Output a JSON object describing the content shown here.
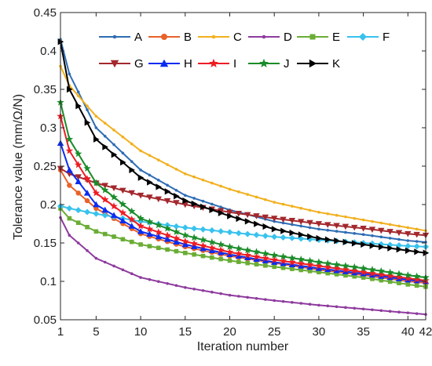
{
  "chart_data": {
    "type": "line",
    "title": "",
    "xlabel": "Iteration number",
    "ylabel": "Tolerance value (mm/Ω/N)",
    "xlim": [
      1,
      42
    ],
    "ylim": [
      0.05,
      0.45
    ],
    "xticks": [
      1,
      5,
      10,
      15,
      20,
      25,
      30,
      35,
      40,
      42
    ],
    "xtick_labels": [
      "1",
      "5",
      "10",
      "15",
      "20",
      "25",
      "30",
      "35",
      "40",
      "42"
    ],
    "yticks": [
      0.05,
      0.1,
      0.15,
      0.2,
      0.25,
      0.3,
      0.35,
      0.4,
      0.45
    ],
    "ytick_labels": [
      "0.05",
      "0.1",
      "0.15",
      "0.2",
      "0.25",
      "0.3",
      "0.35",
      "0.4",
      "0.45"
    ],
    "grid": false,
    "legend_position": "top",
    "x": [
      1,
      2,
      3,
      4,
      5,
      6,
      7,
      8,
      9,
      10,
      11,
      12,
      13,
      14,
      15,
      16,
      17,
      18,
      19,
      20,
      21,
      22,
      23,
      24,
      25,
      26,
      27,
      28,
      29,
      30,
      31,
      32,
      33,
      34,
      35,
      36,
      37,
      38,
      39,
      40,
      41,
      42
    ],
    "series": [
      {
        "name": "A",
        "color": "#2E6DB4",
        "marker": "dot",
        "anchors": [
          [
            1,
            0.415
          ],
          [
            2,
            0.37
          ],
          [
            5,
            0.3
          ],
          [
            10,
            0.245
          ],
          [
            15,
            0.212
          ],
          [
            20,
            0.193
          ],
          [
            25,
            0.178
          ],
          [
            30,
            0.168
          ],
          [
            35,
            0.161
          ],
          [
            40,
            0.153
          ],
          [
            42,
            0.151
          ]
        ]
      },
      {
        "name": "B",
        "color": "#E8622A",
        "marker": "circle",
        "anchors": [
          [
            1,
            0.245
          ],
          [
            2,
            0.225
          ],
          [
            5,
            0.195
          ],
          [
            10,
            0.162
          ],
          [
            15,
            0.145
          ],
          [
            20,
            0.133
          ],
          [
            25,
            0.124
          ],
          [
            30,
            0.115
          ],
          [
            35,
            0.108
          ],
          [
            40,
            0.1
          ],
          [
            42,
            0.098
          ]
        ]
      },
      {
        "name": "C",
        "color": "#F2B01E",
        "marker": "dot",
        "anchors": [
          [
            1,
            0.38
          ],
          [
            2,
            0.355
          ],
          [
            5,
            0.315
          ],
          [
            10,
            0.27
          ],
          [
            15,
            0.24
          ],
          [
            20,
            0.22
          ],
          [
            25,
            0.203
          ],
          [
            30,
            0.19
          ],
          [
            35,
            0.18
          ],
          [
            40,
            0.17
          ],
          [
            42,
            0.166
          ]
        ]
      },
      {
        "name": "D",
        "color": "#8E3B9E",
        "marker": "dot",
        "anchors": [
          [
            1,
            0.183
          ],
          [
            2,
            0.16
          ],
          [
            5,
            0.13
          ],
          [
            10,
            0.105
          ],
          [
            15,
            0.092
          ],
          [
            20,
            0.082
          ],
          [
            25,
            0.075
          ],
          [
            30,
            0.069
          ],
          [
            35,
            0.064
          ],
          [
            40,
            0.059
          ],
          [
            42,
            0.057
          ]
        ]
      },
      {
        "name": "E",
        "color": "#6AAD35",
        "marker": "square",
        "anchors": [
          [
            1,
            0.195
          ],
          [
            2,
            0.182
          ],
          [
            5,
            0.165
          ],
          [
            10,
            0.148
          ],
          [
            15,
            0.137
          ],
          [
            20,
            0.127
          ],
          [
            25,
            0.119
          ],
          [
            30,
            0.112
          ],
          [
            35,
            0.105
          ],
          [
            40,
            0.096
          ],
          [
            42,
            0.093
          ]
        ]
      },
      {
        "name": "F",
        "color": "#38C2EE",
        "marker": "diamond",
        "anchors": [
          [
            1,
            0.198
          ],
          [
            2,
            0.195
          ],
          [
            5,
            0.188
          ],
          [
            10,
            0.178
          ],
          [
            15,
            0.17
          ],
          [
            20,
            0.164
          ],
          [
            25,
            0.158
          ],
          [
            30,
            0.154
          ],
          [
            35,
            0.15
          ],
          [
            40,
            0.146
          ],
          [
            42,
            0.145
          ]
        ]
      },
      {
        "name": "G",
        "color": "#A3282D",
        "marker": "triangle-down",
        "anchors": [
          [
            1,
            0.247
          ],
          [
            2,
            0.24
          ],
          [
            5,
            0.228
          ],
          [
            10,
            0.212
          ],
          [
            15,
            0.2
          ],
          [
            20,
            0.19
          ],
          [
            25,
            0.182
          ],
          [
            30,
            0.175
          ],
          [
            35,
            0.169
          ],
          [
            40,
            0.162
          ],
          [
            42,
            0.16
          ]
        ]
      },
      {
        "name": "H",
        "color": "#0A2CF0",
        "marker": "triangle-up",
        "anchors": [
          [
            1,
            0.28
          ],
          [
            2,
            0.245
          ],
          [
            5,
            0.2
          ],
          [
            10,
            0.165
          ],
          [
            15,
            0.148
          ],
          [
            20,
            0.135
          ],
          [
            25,
            0.125
          ],
          [
            30,
            0.117
          ],
          [
            35,
            0.11
          ],
          [
            40,
            0.102
          ],
          [
            42,
            0.1
          ]
        ]
      },
      {
        "name": "I",
        "color": "#EE1C24",
        "marker": "star",
        "anchors": [
          [
            1,
            0.315
          ],
          [
            2,
            0.27
          ],
          [
            5,
            0.215
          ],
          [
            10,
            0.172
          ],
          [
            15,
            0.152
          ],
          [
            20,
            0.138
          ],
          [
            25,
            0.128
          ],
          [
            30,
            0.12
          ],
          [
            35,
            0.112
          ],
          [
            40,
            0.104
          ],
          [
            42,
            0.101
          ]
        ]
      },
      {
        "name": "J",
        "color": "#1A8C2A",
        "marker": "star",
        "anchors": [
          [
            1,
            0.333
          ],
          [
            2,
            0.285
          ],
          [
            5,
            0.228
          ],
          [
            10,
            0.182
          ],
          [
            15,
            0.16
          ],
          [
            20,
            0.145
          ],
          [
            25,
            0.134
          ],
          [
            30,
            0.125
          ],
          [
            35,
            0.117
          ],
          [
            40,
            0.108
          ],
          [
            42,
            0.105
          ]
        ]
      },
      {
        "name": "K",
        "color": "#000000",
        "marker": "triangle-right",
        "anchors": [
          [
            1,
            0.412
          ],
          [
            2,
            0.35
          ],
          [
            5,
            0.285
          ],
          [
            10,
            0.235
          ],
          [
            15,
            0.205
          ],
          [
            20,
            0.185
          ],
          [
            25,
            0.168
          ],
          [
            30,
            0.156
          ],
          [
            35,
            0.148
          ],
          [
            40,
            0.14
          ],
          [
            42,
            0.137
          ]
        ]
      }
    ]
  }
}
